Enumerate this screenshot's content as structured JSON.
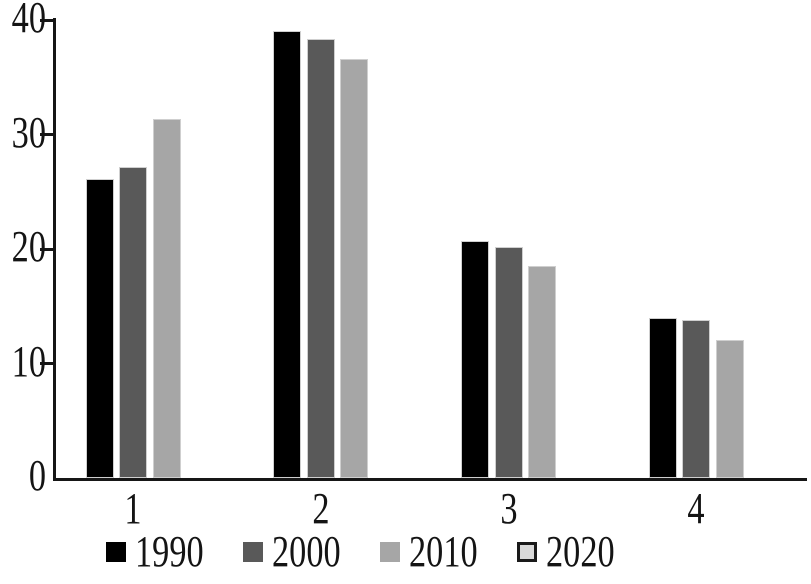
{
  "figure": {
    "background": "#ffffff"
  },
  "chart_data": {
    "type": "bar",
    "title": "",
    "xlabel": "",
    "ylabel": "",
    "categories": [
      "1",
      "2",
      "3",
      "4"
    ],
    "series": [
      {
        "name": "1990",
        "color": "#000000",
        "values": [
          26.1,
          39.1,
          20.7,
          14.0
        ]
      },
      {
        "name": "2000",
        "color": "#595959",
        "values": [
          27.2,
          38.4,
          20.2,
          13.8
        ]
      },
      {
        "name": "2010",
        "color": "#a6a6a6",
        "values": [
          31.4,
          36.6,
          18.5,
          12.1
        ]
      },
      {
        "name": "2020",
        "color": "#d9d9d9",
        "swatch_border": "#1a1a1a",
        "values": [
          null,
          null,
          null,
          null
        ]
      }
    ],
    "ylim": [
      0,
      40
    ],
    "yticks": [
      0,
      10,
      20,
      30,
      40
    ],
    "grid": false,
    "legend_position": "bottom",
    "axis_color": "#161616",
    "text_color": "#141414"
  }
}
